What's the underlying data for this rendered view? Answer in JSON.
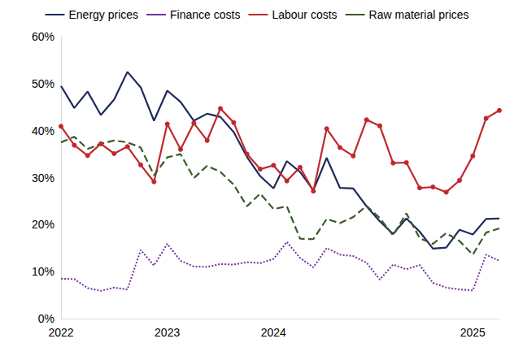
{
  "chart_data": {
    "type": "line",
    "categories": [
      "2022",
      null,
      null,
      null,
      null,
      null,
      null,
      null,
      "2023",
      null,
      null,
      null,
      null,
      null,
      null,
      null,
      "2024",
      null,
      null,
      null,
      null,
      null,
      null,
      null,
      null,
      null,
      null,
      null,
      null,
      null,
      null,
      "2025",
      null,
      null
    ],
    "series": [
      {
        "name": "Energy prices",
        "color": "#1f2a5c",
        "line_style": "solid",
        "marker": "none",
        "values": [
          49.5,
          44.8,
          48.3,
          43.3,
          46.6,
          52.5,
          49.2,
          42.1,
          48.5,
          46.1,
          42.1,
          43.6,
          42.9,
          39.7,
          34.4,
          30.3,
          27.7,
          33.5,
          31.2,
          27.3,
          34.2,
          27.8,
          27.7,
          23.9,
          20.7,
          18.0,
          21.3,
          18.5,
          14.9,
          15.1,
          18.9,
          17.9,
          21.2,
          21.3
        ]
      },
      {
        "name": "Finance costs",
        "color": "#7030a0",
        "line_style": "dotted",
        "marker": "none",
        "values": [
          8.5,
          8.4,
          6.5,
          5.9,
          6.6,
          6.2,
          14.6,
          11.3,
          15.9,
          12.3,
          11.1,
          11.0,
          11.6,
          11.5,
          12.0,
          11.8,
          12.7,
          16.3,
          12.9,
          10.9,
          15.0,
          13.6,
          13.3,
          11.9,
          8.3,
          11.5,
          10.5,
          11.4,
          7.6,
          6.6,
          6.2,
          6.0,
          13.6,
          12.3
        ]
      },
      {
        "name": "Labour costs",
        "color": "#c0282c",
        "line_style": "solid",
        "marker": "circle",
        "values": [
          40.9,
          36.9,
          34.7,
          37.2,
          35.1,
          36.6,
          32.7,
          29.1,
          41.4,
          36.0,
          41.6,
          37.9,
          44.7,
          41.7,
          35.0,
          31.8,
          32.6,
          29.3,
          32.2,
          27.1,
          40.4,
          36.4,
          34.6,
          42.3,
          41.0,
          33.1,
          33.2,
          27.8,
          28.0,
          26.9,
          29.4,
          34.6,
          42.6,
          44.3
        ]
      },
      {
        "name": "Raw material prices",
        "color": "#3a5a2a",
        "line_style": "dashed",
        "marker": "none",
        "values": [
          37.5,
          38.7,
          36.1,
          37.2,
          37.9,
          37.5,
          36.4,
          30.5,
          34.3,
          35.0,
          29.9,
          32.5,
          31.2,
          28.5,
          23.9,
          26.6,
          23.3,
          23.9,
          17.0,
          16.9,
          21.2,
          20.3,
          21.6,
          24.0,
          21.4,
          17.7,
          22.4,
          17.1,
          15.9,
          18.2,
          16.5,
          13.6,
          18.3,
          19.2
        ]
      }
    ],
    "ylim": [
      0,
      60
    ],
    "yticks": [
      {
        "value": 0,
        "label": "0%"
      },
      {
        "value": 10,
        "label": "10%"
      },
      {
        "value": 20,
        "label": "20%"
      },
      {
        "value": 30,
        "label": "30%"
      },
      {
        "value": 40,
        "label": "40%"
      },
      {
        "value": 50,
        "label": "50%"
      },
      {
        "value": 60,
        "label": "60%"
      }
    ],
    "grid": false,
    "legend": "top"
  }
}
